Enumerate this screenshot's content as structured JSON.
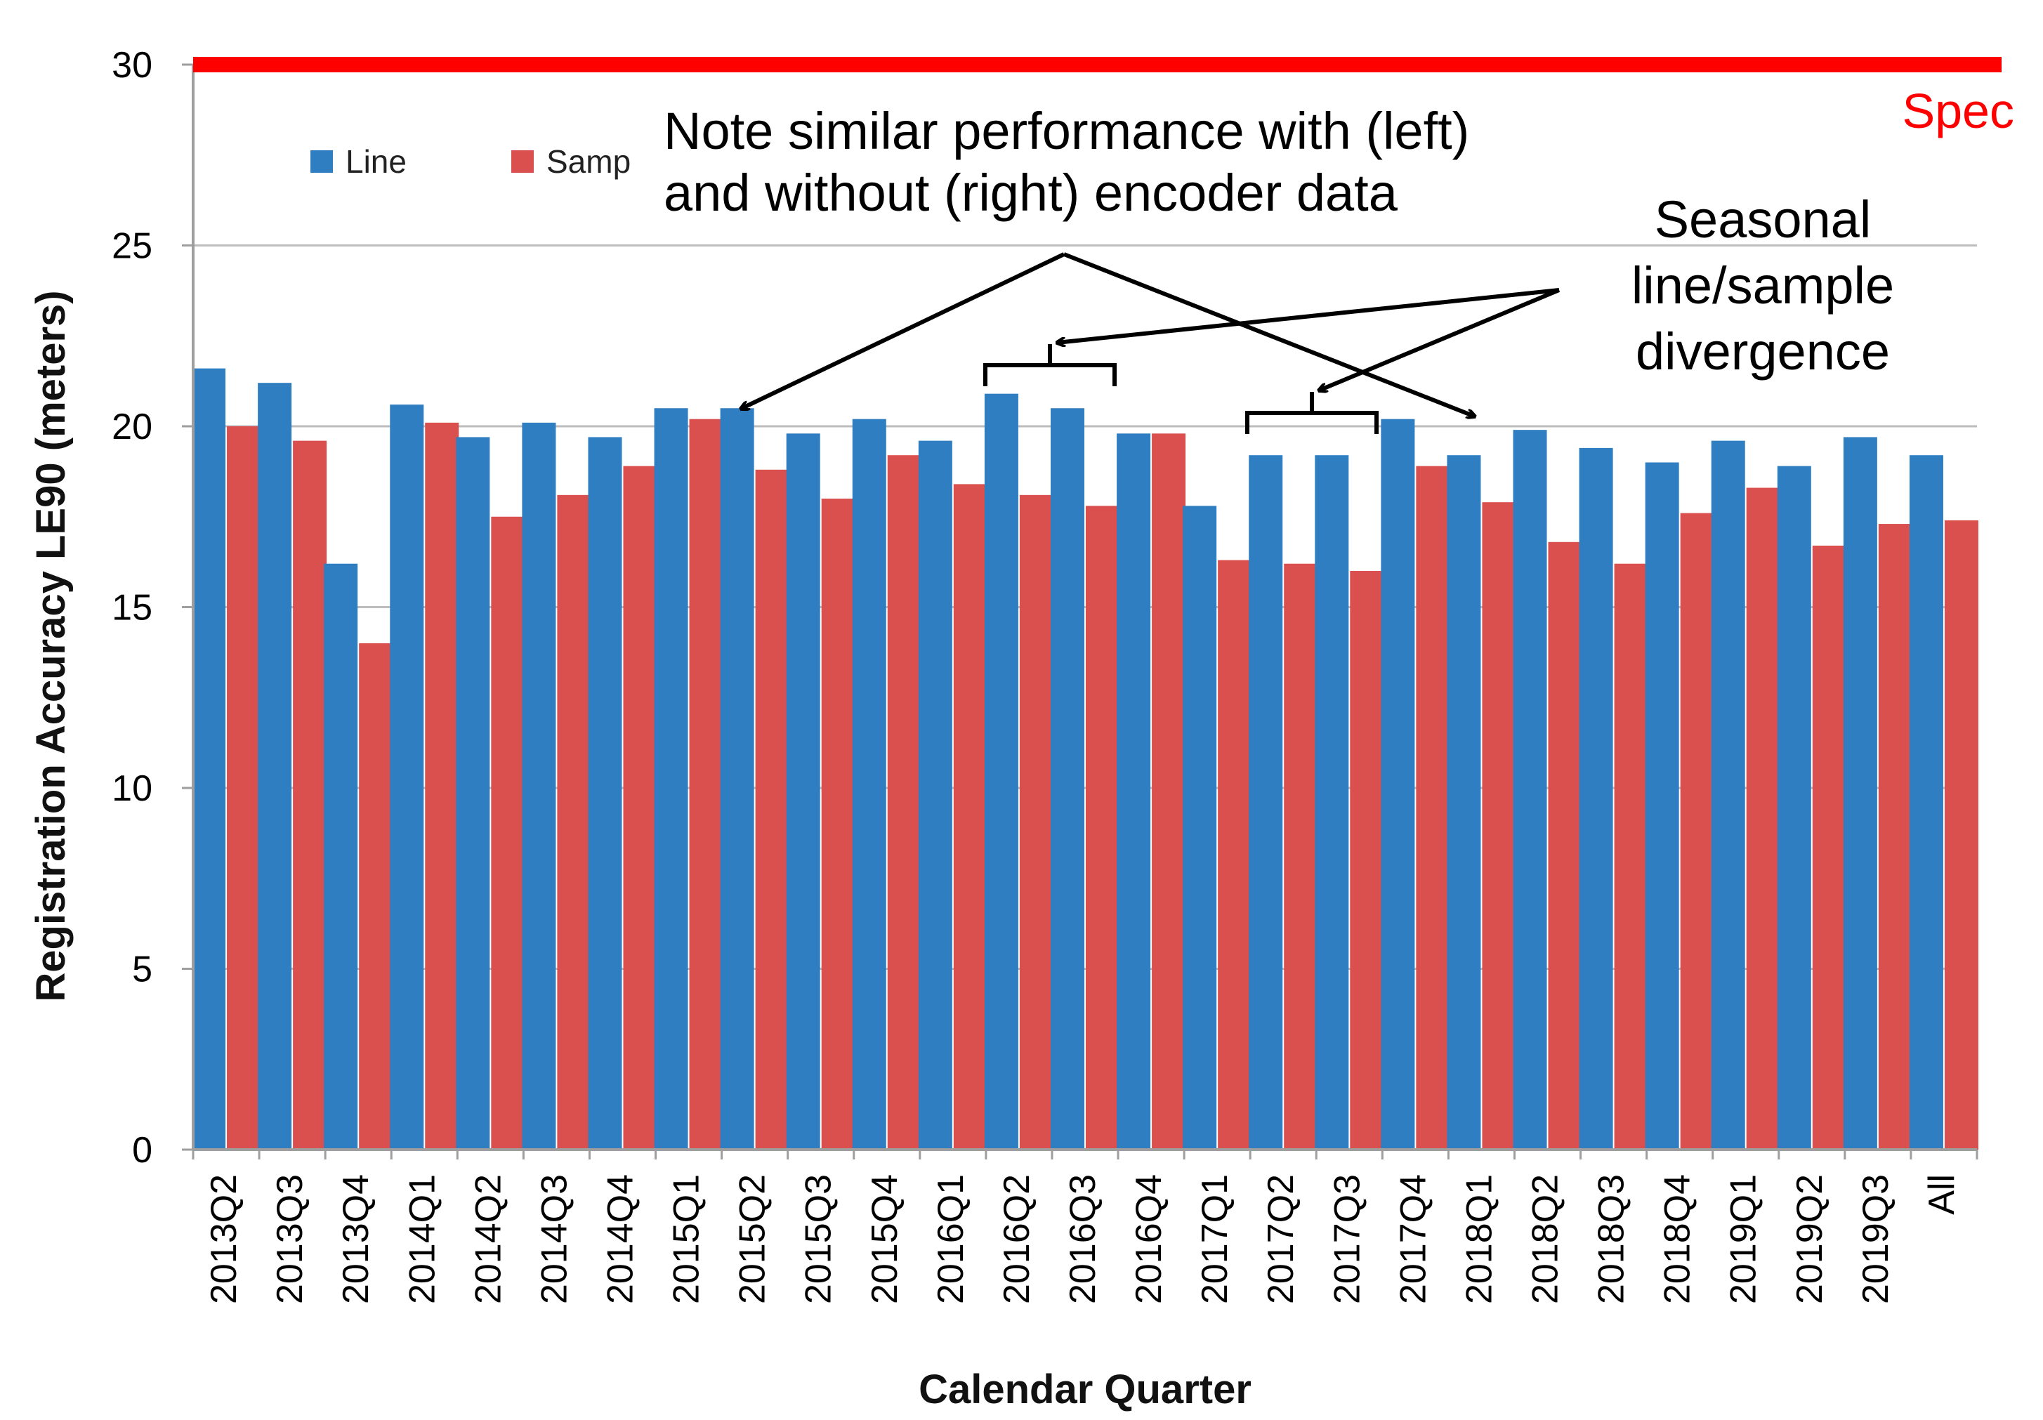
{
  "chart_data": {
    "type": "bar",
    "title": "",
    "xlabel": "Calendar Quarter",
    "ylabel": "Registration Accuracy LE90 (meters)",
    "ylim": [
      0,
      30
    ],
    "yticks": [
      "0",
      "5",
      "10",
      "15",
      "20",
      "25",
      "30"
    ],
    "grid": true,
    "legend_position": "top-left",
    "categories": [
      "2013Q2",
      "2013Q3",
      "2013Q4",
      "2014Q1",
      "2014Q2",
      "2014Q3",
      "2014Q4",
      "2015Q1",
      "2015Q2",
      "2015Q3",
      "2015Q4",
      "2016Q1",
      "2016Q2",
      "2016Q3",
      "2016Q4",
      "2017Q1",
      "2017Q2",
      "2017Q3",
      "2017Q4",
      "2018Q1",
      "2018Q2",
      "2018Q3",
      "2018Q4",
      "2019Q1",
      "2019Q2",
      "2019Q3",
      "All"
    ],
    "series": [
      {
        "name": "Line",
        "color": "#2f7ec1",
        "values": [
          21.6,
          21.2,
          16.2,
          20.6,
          19.7,
          20.1,
          19.7,
          20.5,
          20.5,
          19.8,
          20.2,
          19.6,
          20.9,
          20.5,
          19.8,
          17.8,
          19.2,
          19.2,
          20.2,
          19.2,
          19.9,
          19.4,
          19.0,
          19.6,
          18.9,
          19.7,
          19.2
        ]
      },
      {
        "name": "Samp",
        "color": "#d9504e",
        "values": [
          20.0,
          19.6,
          14.0,
          20.1,
          17.5,
          18.1,
          18.9,
          20.2,
          18.8,
          18.0,
          19.2,
          18.4,
          18.1,
          17.8,
          19.8,
          16.3,
          16.2,
          16.0,
          18.9,
          17.9,
          16.8,
          16.2,
          17.6,
          18.3,
          16.7,
          17.3,
          17.4
        ]
      }
    ],
    "reference_line": {
      "value": 30,
      "label": "Spec",
      "color": "#ff0000"
    },
    "annotations": [
      {
        "lines": [
          "Note similar performance with (left)",
          "and without (right) encoder data"
        ],
        "points_to": [
          "2015Q2",
          "2018Q1"
        ]
      },
      {
        "lines": [
          "Seasonal",
          "line/sample",
          "divergence"
        ],
        "points_to": [
          "2016Q2-2016Q3",
          "2017Q2-2017Q3"
        ]
      }
    ]
  }
}
